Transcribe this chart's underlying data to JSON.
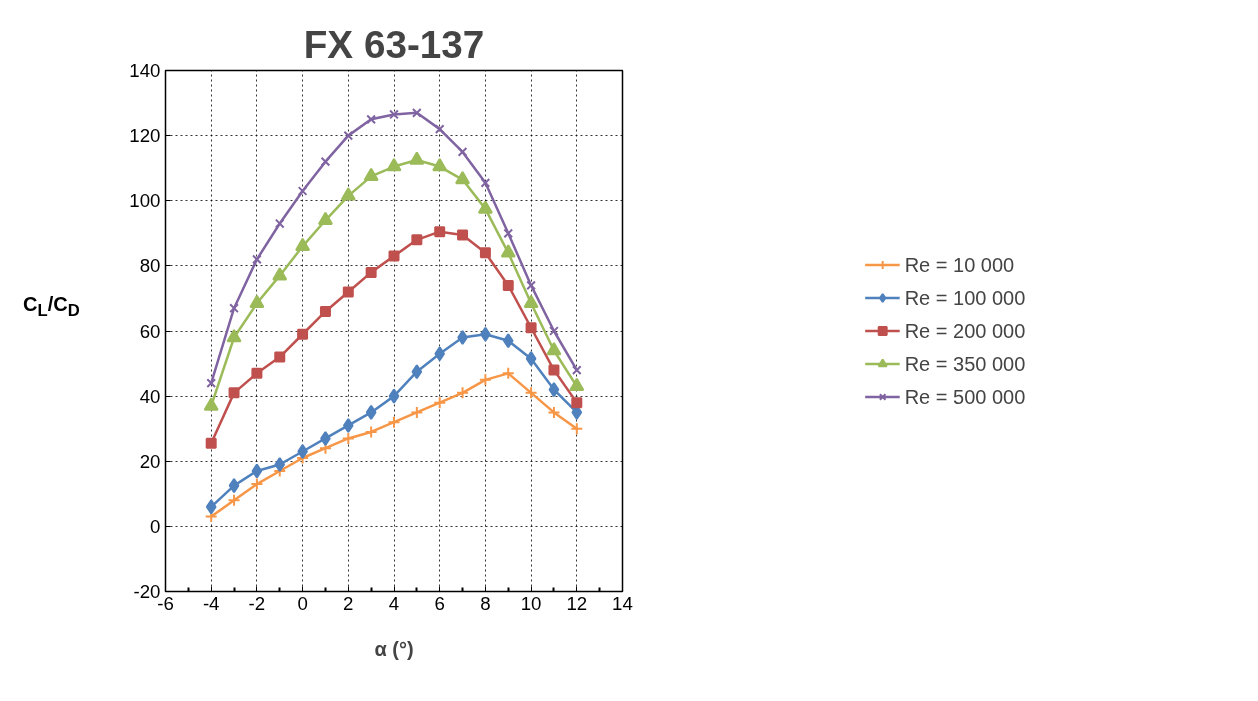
{
  "chart_data": {
    "type": "line",
    "title": "FX 63-137",
    "xlabel": "α (°)",
    "ylabel": "C$_{L}$/C$_{D}$",
    "x": [
      -4,
      -3,
      -2,
      -1,
      0,
      1,
      2,
      3,
      4,
      5,
      6,
      7,
      8,
      9,
      10,
      11,
      12
    ],
    "xlim": [
      -6,
      14
    ],
    "xticks": [
      -6,
      -4,
      -2,
      0,
      2,
      4,
      6,
      8,
      10,
      12,
      14
    ],
    "ylim": [
      -20,
      140
    ],
    "yticks": [
      -20,
      0,
      20,
      40,
      60,
      80,
      100,
      120,
      140
    ],
    "grid": true,
    "legend": "right",
    "series": [
      {
        "name": "Re = 10 000",
        "color": "#f79646",
        "marker": "cross",
        "values": [
          3,
          8,
          13,
          17,
          21,
          24,
          27,
          29,
          32,
          35,
          38,
          41,
          45,
          47,
          41,
          35,
          30
        ]
      },
      {
        "name": "Re = 100 000",
        "color": "#4f81bd",
        "marker": "diamond",
        "values": [
          6,
          12.5,
          17,
          19,
          23,
          27,
          31,
          35,
          40,
          47.5,
          53,
          58,
          59,
          57,
          51.5,
          42,
          35
        ]
      },
      {
        "name": "Re = 200 000",
        "color": "#c0504d",
        "marker": "square",
        "values": [
          25.5,
          41,
          47,
          52,
          59,
          66,
          72,
          78,
          83,
          88,
          90.5,
          89.5,
          84,
          74,
          61,
          48,
          38
        ]
      },
      {
        "name": "Re = 350 000",
        "color": "#9bbb59",
        "marker": "triangle",
        "values": [
          37,
          58,
          68.5,
          77,
          86,
          94,
          101.5,
          107.5,
          110.5,
          112.5,
          110.5,
          106.5,
          97.5,
          84,
          68.5,
          54,
          43
        ]
      },
      {
        "name": "Re = 500 000",
        "color": "#8064a2",
        "marker": "x",
        "values": [
          44,
          67,
          82,
          93,
          103,
          112,
          120,
          125,
          126.5,
          127,
          122,
          115,
          105.5,
          90,
          74,
          60,
          48
        ]
      }
    ]
  }
}
